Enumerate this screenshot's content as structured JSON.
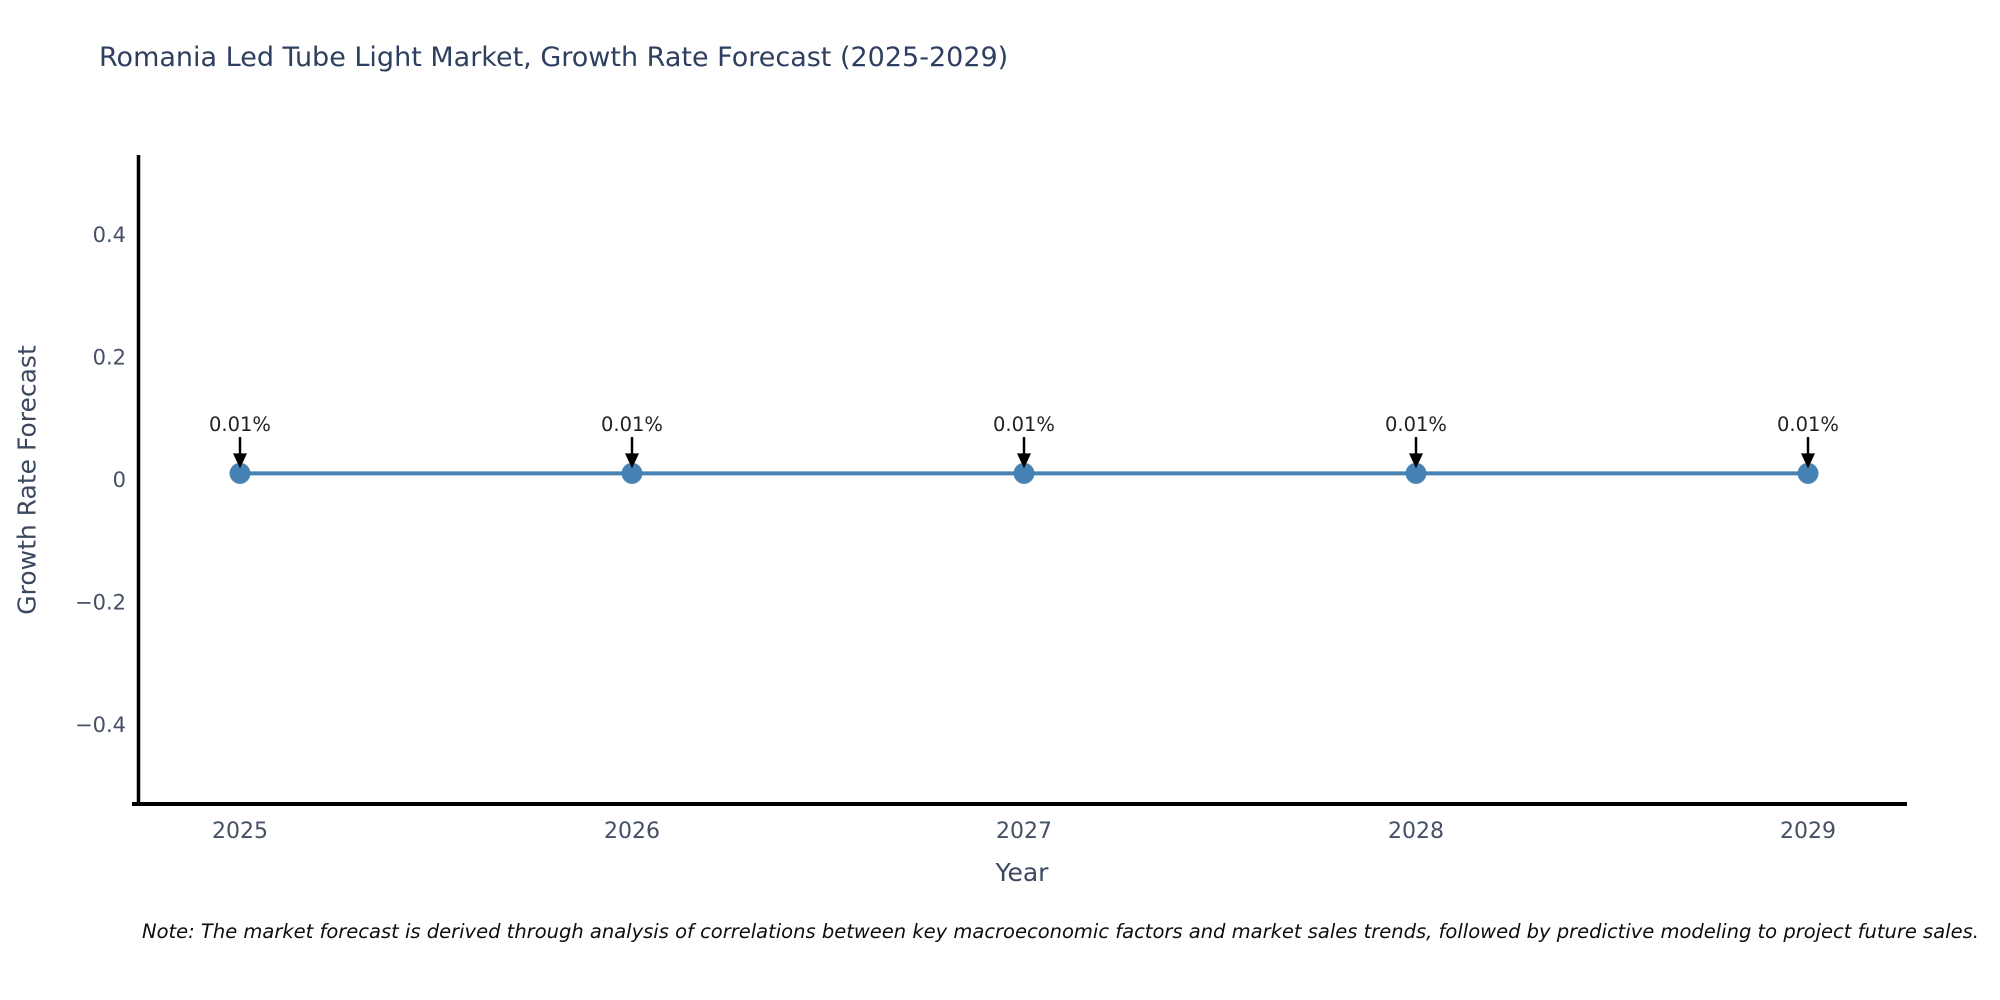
{
  "title": "Romania Led Tube Light Market, Growth Rate Forecast (2025-2029)",
  "note": "Note: The market forecast is derived through analysis of correlations between key macroeconomic factors and market sales trends, followed by predictive modeling to project future sales.",
  "chart_data": {
    "type": "line",
    "x": [
      2025,
      2026,
      2027,
      2028,
      2029
    ],
    "series": [
      {
        "name": "Growth Rate Forecast",
        "values": [
          0.01,
          0.01,
          0.01,
          0.01,
          0.01
        ]
      }
    ],
    "point_labels": [
      "0.01%",
      "0.01%",
      "0.01%",
      "0.01%",
      "0.01%"
    ],
    "title": "Romania Led Tube Light Market, Growth Rate Forecast (2025-2029)",
    "xlabel": "Year",
    "ylabel": "Growth Rate Forecast",
    "xtick_labels": [
      "2025",
      "2026",
      "2027",
      "2028",
      "2029"
    ],
    "yticks": [
      0.4,
      0.2,
      0,
      -0.2,
      -0.4
    ],
    "ytick_labels": [
      "0.4",
      "0.2",
      "0",
      "−0.2",
      "−0.4"
    ],
    "ylim": [
      -0.53,
      0.53
    ],
    "grid": false,
    "legend": false,
    "annotations_have_arrows": true
  },
  "colors": {
    "title": "#2e3f5f",
    "axis_label": "#3b485f",
    "tick_label": "#455065",
    "line": "#4682b4",
    "marker": "#4682b4",
    "arrow": "#000000",
    "annotation_text": "#222222",
    "axis_line": "#000000",
    "background": "#ffffff"
  }
}
